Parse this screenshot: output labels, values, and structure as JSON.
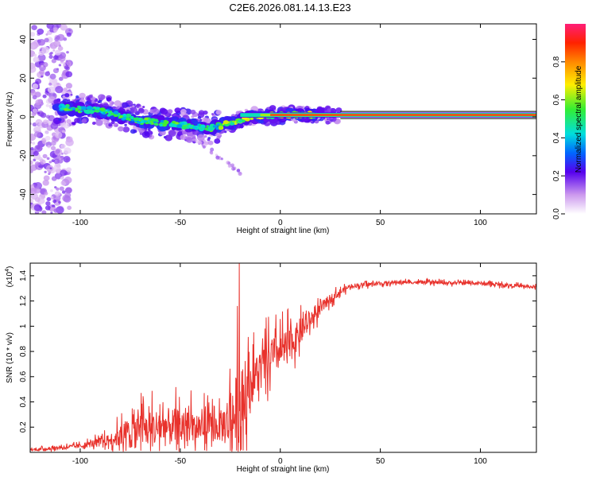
{
  "title": "C2E6.2026.081.14.13.E23",
  "colors": {
    "snr_line": "#e8322c",
    "frame": "#000000",
    "background": "#ffffff"
  },
  "chart_data": [
    {
      "type": "heatmap",
      "name": "spectrogram",
      "xlabel": "Height of straight line (km)",
      "ylabel": "Frequency (Hz)",
      "xlim": [
        -125,
        128
      ],
      "ylim": [
        -50,
        48
      ],
      "xticks": [
        -100,
        -50,
        0,
        50,
        100
      ],
      "xtick_labels": [
        "-100",
        "-50",
        "0",
        "50",
        "100"
      ],
      "yticks": [
        -40,
        -20,
        0,
        20,
        40
      ],
      "ytick_labels": [
        "-40",
        "-20",
        "0",
        "20",
        "40"
      ],
      "ridge": [
        {
          "x": -110,
          "y": 5
        },
        {
          "x": -90,
          "y": 3
        },
        {
          "x": -70,
          "y": -2
        },
        {
          "x": -50,
          "y": -4
        },
        {
          "x": -35,
          "y": -6
        },
        {
          "x": -25,
          "y": -3
        },
        {
          "x": -15,
          "y": 0
        },
        {
          "x": 0,
          "y": 1
        },
        {
          "x": 30,
          "y": 1
        },
        {
          "x": 128,
          "y": 1
        }
      ],
      "diffuse_band_x": [
        -125,
        -105
      ],
      "colorbar": {
        "label": "Normalized spectral amplitude",
        "range": [
          0,
          1
        ],
        "ticks": [
          0,
          0.2,
          0.4,
          0.6,
          0.8
        ],
        "tick_labels": [
          "0.0",
          "0.2",
          "0.4",
          "0.6",
          "0.8"
        ]
      }
    },
    {
      "type": "line",
      "name": "snr",
      "xlabel": "Height of straight line (km)",
      "ylabel": "SNR (10 * v/v)",
      "scale_label": "(x10",
      "scale_exponent": "4",
      "scale_close": ")",
      "xlim": [
        -125,
        128
      ],
      "ylim": [
        0,
        1.5
      ],
      "xticks": [
        -100,
        -50,
        0,
        50,
        100
      ],
      "xtick_labels": [
        "-100",
        "-50",
        "0",
        "50",
        "100"
      ],
      "yticks": [
        0.2,
        0.4,
        0.6,
        0.8,
        1.0,
        1.2,
        1.4
      ],
      "ytick_labels": [
        "0.2",
        "0.4",
        "0.6",
        "0.8",
        "1",
        "1.2",
        "1.4"
      ],
      "envelope": [
        {
          "x": -125,
          "base": 0.02,
          "amp": 0.02
        },
        {
          "x": -100,
          "base": 0.05,
          "amp": 0.04
        },
        {
          "x": -85,
          "base": 0.1,
          "amp": 0.1
        },
        {
          "x": -75,
          "base": 0.16,
          "amp": 0.3
        },
        {
          "x": -60,
          "base": 0.2,
          "amp": 0.35
        },
        {
          "x": -45,
          "base": 0.2,
          "amp": 0.3
        },
        {
          "x": -30,
          "base": 0.2,
          "amp": 0.25
        },
        {
          "x": -22,
          "base": 0.3,
          "amp": 0.7
        },
        {
          "x": -15,
          "base": 0.55,
          "amp": 0.4
        },
        {
          "x": -5,
          "base": 0.75,
          "amp": 0.35
        },
        {
          "x": 5,
          "base": 0.85,
          "amp": 0.3
        },
        {
          "x": 15,
          "base": 1.05,
          "amp": 0.15
        },
        {
          "x": 25,
          "base": 1.22,
          "amp": 0.08
        },
        {
          "x": 35,
          "base": 1.32,
          "amp": 0.04
        },
        {
          "x": 60,
          "base": 1.35,
          "amp": 0.03
        },
        {
          "x": 100,
          "base": 1.34,
          "amp": 0.03
        },
        {
          "x": 128,
          "base": 1.31,
          "amp": 0.03
        }
      ],
      "peaks": [
        {
          "x": -20.5,
          "y": 1.5
        },
        {
          "x": -21.5,
          "y": 1.16
        },
        {
          "x": -19.5,
          "y": 0.02
        }
      ]
    }
  ]
}
